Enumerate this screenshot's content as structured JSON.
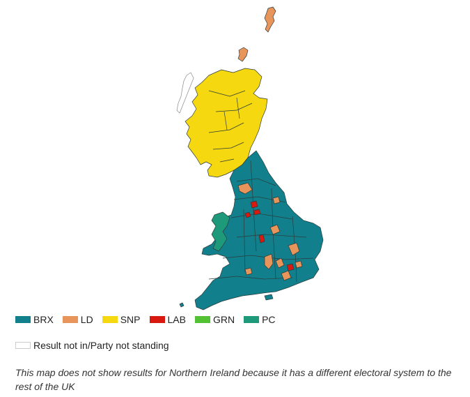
{
  "colors": {
    "BRX": "#12808c",
    "LD": "#e8955c",
    "SNP": "#f5d80f",
    "LAB": "#d9180f",
    "GRN": "#52c234",
    "PC": "#1e9a7a",
    "border": "#2b3b3b"
  },
  "legend": {
    "items": [
      {
        "code": "BRX",
        "label": "BRX"
      },
      {
        "code": "LD",
        "label": "LD"
      },
      {
        "code": "SNP",
        "label": "SNP"
      },
      {
        "code": "LAB",
        "label": "LAB"
      },
      {
        "code": "GRN",
        "label": "GRN"
      },
      {
        "code": "PC",
        "label": "PC"
      }
    ],
    "not_in_label": "Result not in/Party not standing"
  },
  "caption": "This map does not show results for Northern Ireland because it has a different electoral system to the rest of the UK"
}
